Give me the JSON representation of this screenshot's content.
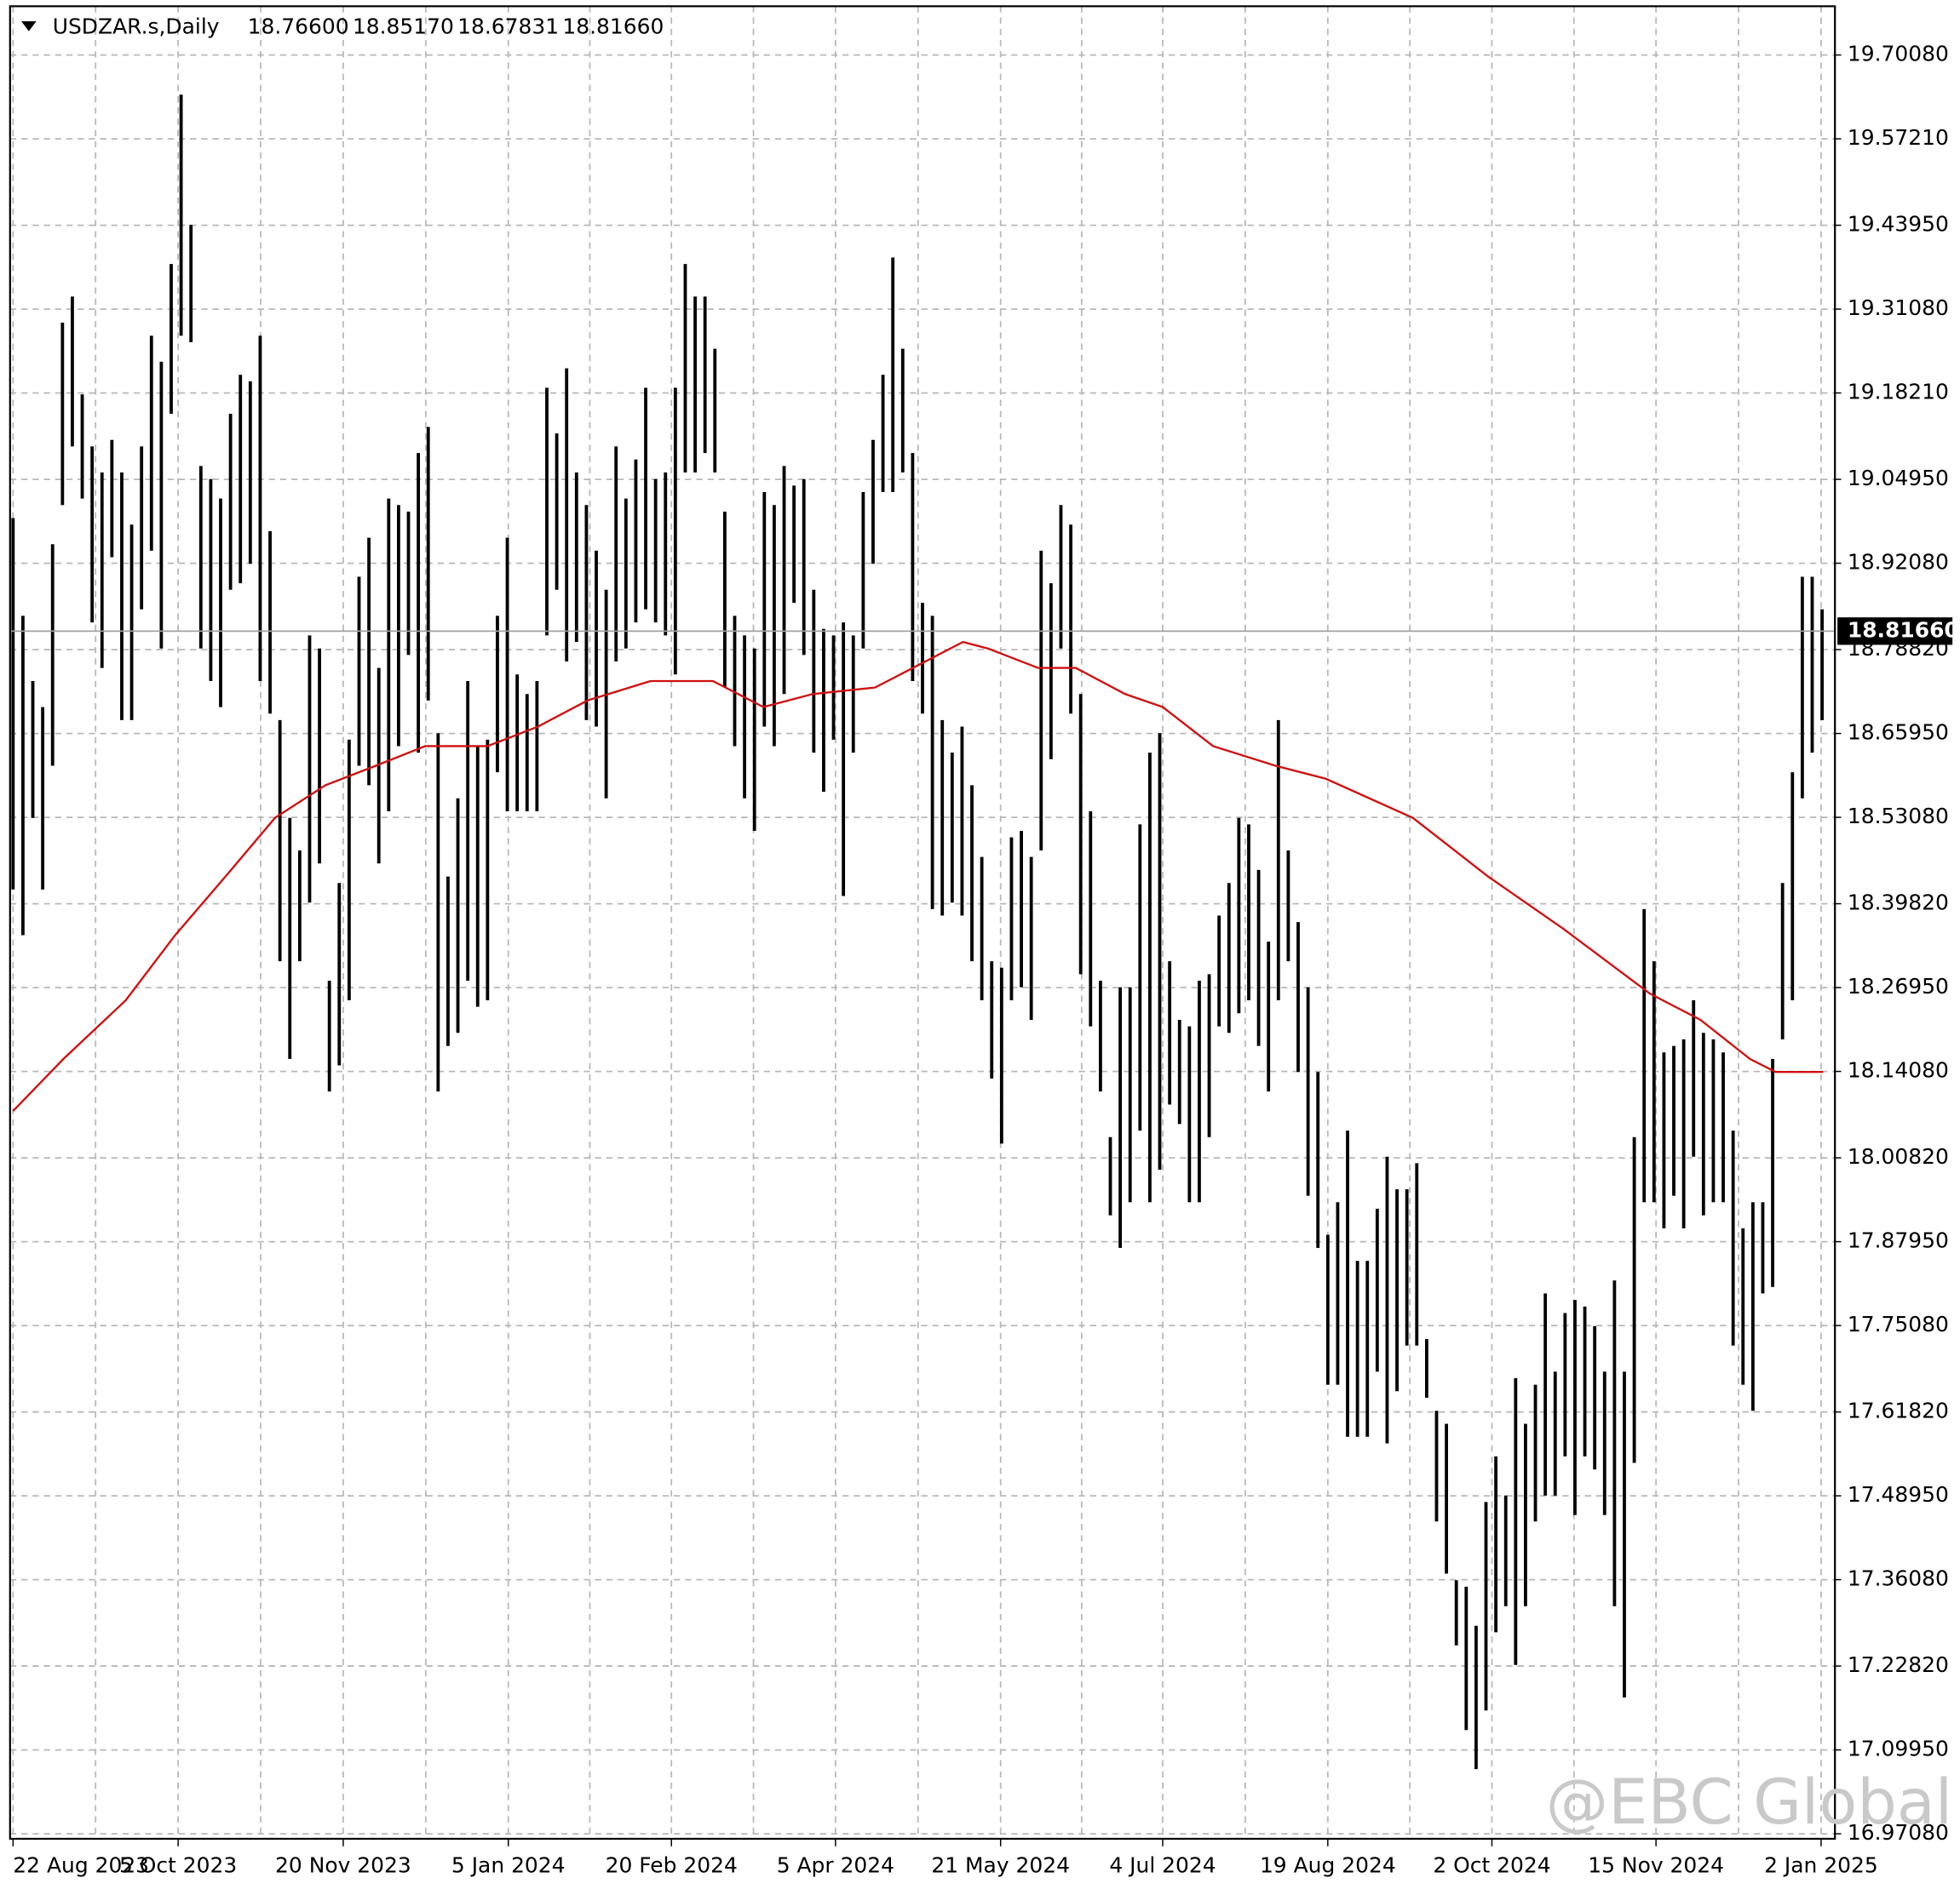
{
  "chart_data": {
    "type": "ohlc",
    "title": "USDZAR.s,Daily",
    "header_values": [
      "18.76600",
      "18.85170",
      "18.67831",
      "18.81660"
    ],
    "watermark": "@EBC Global",
    "bar_color": "#000000",
    "grid": true,
    "xlim": [
      -0.3,
      184.3
    ],
    "ylim": [
      16.9631,
      19.7756
    ],
    "xticks": [
      {
        "value": 0,
        "label": "22 Aug 2023"
      },
      {
        "value": 16.7,
        "label": "5 Oct 2023"
      },
      {
        "value": 33.4,
        "label": "20 Nov 2023"
      },
      {
        "value": 50.1,
        "label": "5 Jan 2024"
      },
      {
        "value": 66.6,
        "label": "20 Feb 2024"
      },
      {
        "value": 83.2,
        "label": "5 Apr 2024"
      },
      {
        "value": 99.9,
        "label": "21 May 2024"
      },
      {
        "value": 116.3,
        "label": "4 Jul 2024"
      },
      {
        "value": 133.0,
        "label": "19 Aug 2024"
      },
      {
        "value": 149.6,
        "label": "2 Oct 2024"
      },
      {
        "value": 166.2,
        "label": "15 Nov 2024"
      },
      {
        "value": 182.9,
        "label": "2 Jan 2025"
      }
    ],
    "yticks": [
      {
        "value": 19.7008,
        "label": "19.70080"
      },
      {
        "value": 19.5721,
        "label": "19.57210"
      },
      {
        "value": 19.4395,
        "label": "19.43950"
      },
      {
        "value": 19.3108,
        "label": "19.31080"
      },
      {
        "value": 19.1821,
        "label": "19.18210"
      },
      {
        "value": 19.0495,
        "label": "19.04950"
      },
      {
        "value": 18.9208,
        "label": "18.92080"
      },
      {
        "value": 18.7882,
        "label": "18.78820"
      },
      {
        "value": 18.6595,
        "label": "18.65950"
      },
      {
        "value": 18.5308,
        "label": "18.53080"
      },
      {
        "value": 18.3982,
        "label": "18.39820"
      },
      {
        "value": 18.2695,
        "label": "18.26950"
      },
      {
        "value": 18.1408,
        "label": "18.14080"
      },
      {
        "value": 18.0082,
        "label": "18.00820"
      },
      {
        "value": 17.8795,
        "label": "17.87950"
      },
      {
        "value": 17.7508,
        "label": "17.75080"
      },
      {
        "value": 17.6182,
        "label": "17.61820"
      },
      {
        "value": 17.4895,
        "label": "17.48950"
      },
      {
        "value": 17.3608,
        "label": "17.36080"
      },
      {
        "value": 17.2282,
        "label": "17.22820"
      },
      {
        "value": 17.0995,
        "label": "17.09950"
      },
      {
        "value": 16.9708,
        "label": "16.97080"
      }
    ],
    "current_price": {
      "value": 18.8166,
      "label": "18.81660"
    },
    "high": [
      18.99,
      18.84,
      18.74,
      18.7,
      18.95,
      19.29,
      19.33,
      19.18,
      19.1,
      19.06,
      19.11,
      19.06,
      18.98,
      19.1,
      19.27,
      19.23,
      19.38,
      19.64,
      19.44,
      19.07,
      19.05,
      19.02,
      19.15,
      19.21,
      19.2,
      19.27,
      18.97,
      18.68,
      18.53,
      18.48,
      18.81,
      18.79,
      18.28,
      18.43,
      18.65,
      18.9,
      18.96,
      18.76,
      19.02,
      19.01,
      19.0,
      19.09,
      19.13,
      18.66,
      18.44,
      18.56,
      18.74,
      18.64,
      18.65,
      18.84,
      18.96,
      18.75,
      18.72,
      18.74,
      19.19,
      19.12,
      19.22,
      19.06,
      19.01,
      18.94,
      18.88,
      19.1,
      19.02,
      19.08,
      19.19,
      19.05,
      19.06,
      19.19,
      19.38,
      19.33,
      19.33,
      19.25,
      19.0,
      18.84,
      18.81,
      18.79,
      19.03,
      19.01,
      19.07,
      19.04,
      19.05,
      18.88,
      18.82,
      18.81,
      18.83,
      18.81,
      19.03,
      19.11,
      19.21,
      19.39,
      19.25,
      19.09,
      18.86,
      18.84,
      18.68,
      18.63,
      18.67,
      18.58,
      18.47,
      18.31,
      18.3,
      18.5,
      18.51,
      18.47,
      18.94,
      18.89,
      19.01,
      18.98,
      18.72,
      18.54,
      18.28,
      18.04,
      18.27,
      18.27,
      18.52,
      18.63,
      18.66,
      18.31,
      18.22,
      18.21,
      18.28,
      18.29,
      18.38,
      18.43,
      18.53,
      18.52,
      18.45,
      18.34,
      18.68,
      18.48,
      18.37,
      18.27,
      18.14,
      17.89,
      17.94,
      18.05,
      17.85,
      17.85,
      17.93,
      18.01,
      17.96,
      17.96,
      18.0,
      17.73,
      17.62,
      17.6,
      17.36,
      17.35,
      17.29,
      17.48,
      17.55,
      17.49,
      17.67,
      17.6,
      17.66,
      17.8,
      17.68,
      17.77,
      17.79,
      17.78,
      17.75,
      17.68,
      17.82,
      17.68,
      18.04,
      18.39,
      18.31,
      18.17,
      18.18,
      18.19,
      18.25,
      18.2,
      18.19,
      18.17,
      18.05,
      17.9,
      17.94,
      17.94,
      18.16,
      18.43,
      18.6,
      18.9,
      18.9,
      18.85
    ],
    "low": [
      18.42,
      18.35,
      18.53,
      18.42,
      18.61,
      19.01,
      19.1,
      19.02,
      18.83,
      18.76,
      18.93,
      18.68,
      18.68,
      18.85,
      18.94,
      18.79,
      19.15,
      19.27,
      19.26,
      18.79,
      18.74,
      18.7,
      18.88,
      18.89,
      18.92,
      18.74,
      18.69,
      18.31,
      18.16,
      18.31,
      18.4,
      18.46,
      18.11,
      18.15,
      18.25,
      18.61,
      18.58,
      18.46,
      18.54,
      18.64,
      18.78,
      18.63,
      18.71,
      18.11,
      18.18,
      18.2,
      18.28,
      18.24,
      18.25,
      18.6,
      18.54,
      18.54,
      18.54,
      18.54,
      18.81,
      18.88,
      18.77,
      18.8,
      18.68,
      18.67,
      18.56,
      18.77,
      18.79,
      18.83,
      18.85,
      18.83,
      18.81,
      18.75,
      19.06,
      19.06,
      19.09,
      19.06,
      18.73,
      18.64,
      18.56,
      18.51,
      18.67,
      18.64,
      18.72,
      18.86,
      18.78,
      18.63,
      18.57,
      18.65,
      18.41,
      18.63,
      18.79,
      18.92,
      19.03,
      19.03,
      19.06,
      18.74,
      18.69,
      18.39,
      18.38,
      18.4,
      18.38,
      18.31,
      18.25,
      18.13,
      18.03,
      18.25,
      18.27,
      18.22,
      18.48,
      18.62,
      18.79,
      18.69,
      18.29,
      18.21,
      18.11,
      17.92,
      17.87,
      17.94,
      18.05,
      17.94,
      17.99,
      18.09,
      18.06,
      17.94,
      17.94,
      18.04,
      18.21,
      18.2,
      18.23,
      18.25,
      18.18,
      18.11,
      18.25,
      18.31,
      18.14,
      17.95,
      17.87,
      17.66,
      17.66,
      17.58,
      17.58,
      17.58,
      17.68,
      17.57,
      17.65,
      17.72,
      17.72,
      17.64,
      17.45,
      17.37,
      17.26,
      17.13,
      17.07,
      17.16,
      17.28,
      17.32,
      17.23,
      17.32,
      17.45,
      17.49,
      17.49,
      17.55,
      17.46,
      17.55,
      17.53,
      17.46,
      17.32,
      17.18,
      17.54,
      17.94,
      17.94,
      17.9,
      17.95,
      17.9,
      18.01,
      17.92,
      17.94,
      17.94,
      17.72,
      17.66,
      17.62,
      17.8,
      17.81,
      18.19,
      18.25,
      18.56,
      18.63,
      18.68
    ],
    "ma": {
      "color": "#d01010",
      "x": [
        0,
        5.1,
        11.4,
        16.4,
        21.5,
        26.5,
        31.6,
        36.7,
        41.7,
        48.0,
        53.1,
        58.1,
        64.5,
        70.8,
        75.9,
        80.9,
        87.2,
        92.3,
        96.1,
        98.6,
        103.7,
        107.5,
        112.5,
        116.3,
        121.4,
        127.7,
        132.8,
        141.6,
        149.2,
        156.8,
        165.6,
        170.7,
        175.7,
        178.3,
        183.1
      ],
      "values": [
        18.08,
        18.16,
        18.25,
        18.35,
        18.44,
        18.53,
        18.58,
        18.61,
        18.64,
        18.64,
        18.67,
        18.71,
        18.74,
        18.74,
        18.7,
        18.72,
        18.73,
        18.77,
        18.8,
        18.79,
        18.76,
        18.76,
        18.72,
        18.7,
        18.64,
        18.61,
        18.59,
        18.53,
        18.44,
        18.36,
        18.26,
        18.22,
        18.16,
        18.14,
        18.14
      ]
    }
  }
}
